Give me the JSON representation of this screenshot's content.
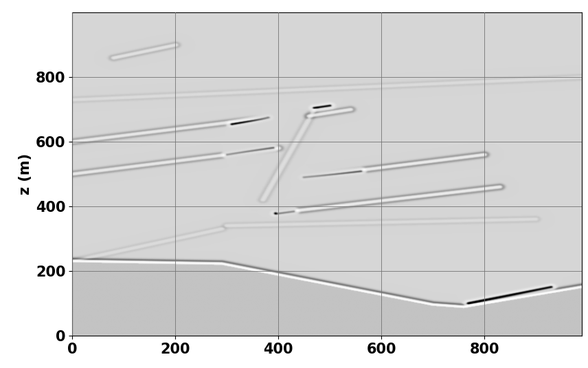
{
  "chart_data": {
    "type": "image",
    "ylabel": "z (m)",
    "xlim": [
      0,
      990
    ],
    "ylim": [
      1000,
      0
    ],
    "xticks": [
      0,
      200,
      400,
      600,
      800
    ],
    "yticks": [
      0,
      200,
      400,
      600,
      800
    ],
    "grid": true,
    "surface": {
      "x": [
        0,
        290,
        700,
        760,
        990
      ],
      "z": [
        230,
        222,
        95,
        88,
        150
      ],
      "amplitude": 1.0
    },
    "reflectors": [
      {
        "x": [
          770,
          930
        ],
        "z": [
          100,
          150
        ],
        "amplitude": -1.0
      },
      {
        "x": [
          400,
          830
        ],
        "z": [
          380,
          460
        ],
        "amplitude": 0.6
      },
      {
        "x": [
          395,
          430
        ],
        "z": [
          378,
          385
        ],
        "amplitude": -0.9
      },
      {
        "x": [
          450,
          800
        ],
        "z": [
          490,
          560
        ],
        "amplitude": 0.6
      },
      {
        "x": [
          450,
          560
        ],
        "z": [
          490,
          510
        ],
        "amplitude": -0.9
      },
      {
        "x": [
          0,
          400
        ],
        "z": [
          500,
          580
        ],
        "amplitude": 0.5
      },
      {
        "x": [
          300,
          390
        ],
        "z": [
          560,
          580
        ],
        "amplitude": -0.8
      },
      {
        "x": [
          0,
          380
        ],
        "z": [
          600,
          675
        ],
        "amplitude": 0.5
      },
      {
        "x": [
          310,
          380
        ],
        "z": [
          655,
          675
        ],
        "amplitude": -0.9
      },
      {
        "x": [
          460,
          540
        ],
        "z": [
          680,
          700
        ],
        "amplitude": 0.5
      },
      {
        "x": [
          470,
          500
        ],
        "z": [
          705,
          712
        ],
        "amplitude": -1.0
      },
      {
        "x": [
          300,
          900
        ],
        "z": [
          340,
          360
        ],
        "amplitude": 0.15
      },
      {
        "x": [
          80,
          200
        ],
        "z": [
          860,
          900
        ],
        "amplitude": 0.3
      },
      {
        "x": [
          0,
          990
        ],
        "z": [
          730,
          800
        ],
        "amplitude": 0.15
      },
      {
        "x": [
          370,
          470
        ],
        "z": [
          420,
          700
        ],
        "amplitude": 0.2
      },
      {
        "x": [
          0,
          290
        ],
        "z": [
          230,
          330
        ],
        "amplitude": 0.15
      }
    ]
  }
}
